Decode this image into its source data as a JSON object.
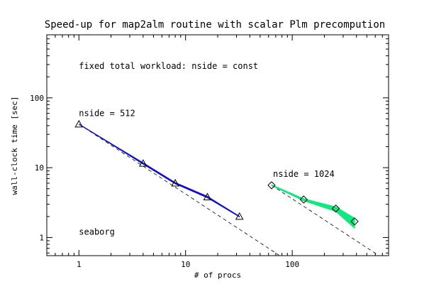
{
  "chart_data": {
    "type": "line",
    "title": "Speed-up for map2alm routine with scalar Plm precompution",
    "xlabel": "# of procs",
    "ylabel": "wall-clock time [sec]",
    "x_scale": "log",
    "y_scale": "log",
    "xlim": [
      0.5,
      800
    ],
    "ylim": [
      0.55,
      800
    ],
    "x_ticks": [
      {
        "value": 1,
        "label": "1"
      },
      {
        "value": 10,
        "label": "10"
      },
      {
        "value": 100,
        "label": "100"
      }
    ],
    "y_ticks": [
      {
        "value": 1,
        "label": "1"
      },
      {
        "value": 10,
        "label": "10"
      },
      {
        "value": 100,
        "label": "100"
      }
    ],
    "grid": false,
    "annotations": [
      {
        "text": "fixed total workload: nside = const",
        "x": 1,
        "y": 260,
        "color": "#000000"
      },
      {
        "text": "seaborg",
        "x": 1,
        "y": 1.1,
        "color": "#000000"
      }
    ],
    "series": [
      {
        "name": "nside = 512",
        "label_at": {
          "x": 1,
          "y": 55
        },
        "color": "#1010c8",
        "marker": "triangle",
        "x": [
          1,
          4,
          8,
          16,
          32
        ],
        "y": [
          42,
          11.5,
          6.0,
          3.8,
          2.0
        ],
        "band_upper": [
          42,
          11.8,
          6.15,
          3.9,
          2.02
        ],
        "band_lower": [
          42,
          11.2,
          5.85,
          3.7,
          1.97
        ],
        "ideal": {
          "x": [
            1,
            75
          ],
          "y": [
            42,
            0.56
          ]
        }
      },
      {
        "name": "nside = 1024",
        "label_at": {
          "x": 66,
          "y": 7.4
        },
        "color": "#10e880",
        "marker": "diamond",
        "x": [
          64,
          128,
          256,
          384
        ],
        "y": [
          5.6,
          3.5,
          2.6,
          1.7
        ],
        "band_upper": [
          5.7,
          3.6,
          2.75,
          1.9
        ],
        "band_lower": [
          5.5,
          3.35,
          2.35,
          1.35
        ],
        "ideal": {
          "x": [
            64,
            650
          ],
          "y": [
            5.6,
            0.55
          ]
        }
      }
    ]
  }
}
